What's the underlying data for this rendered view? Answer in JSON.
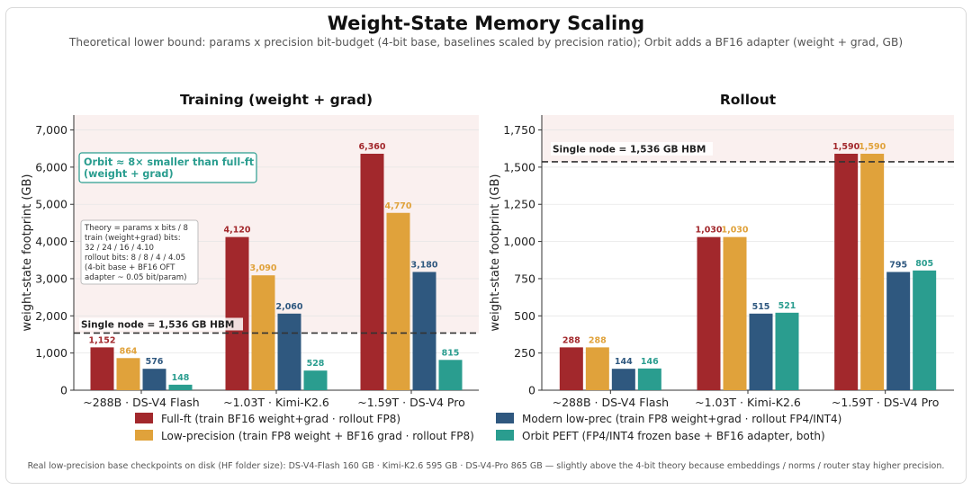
{
  "title": "Weight-State Memory Scaling",
  "subtitle": "Theoretical lower bound: params x precision bit-budget (4-bit base, baselines scaled by precision ratio); Orbit adds a BF16 adapter  (weight + grad, GB)",
  "footer": "Real low-precision base checkpoints on disk (HF folder size):  DS-V4-Flash 160 GB  ·  Kimi-K2.6 595 GB  ·  DS-V4-Pro 865 GB  — slightly above the 4-bit theory because embeddings / norms / router stay higher precision.",
  "colors": {
    "full_ft": "#a2282c",
    "low_precision": "#e0a23b",
    "modern_low_prec": "#2f587f",
    "orbit_peft": "#2a9d8f",
    "band": "#faf0ef",
    "note_green": "#2a9d8f"
  },
  "legend": [
    {
      "key": "full_ft",
      "label": "Full-ft  (train BF16 weight+grad · rollout FP8)"
    },
    {
      "key": "low_precision",
      "label": "Low-precision  (train FP8 weight + BF16 grad · rollout FP8)"
    },
    {
      "key": "modern_low_prec",
      "label": "Modern low-prec  (train FP8 weight+grad · rollout FP4/INT4)"
    },
    {
      "key": "orbit_peft",
      "label": "Orbit PEFT  (FP4/INT4 frozen base + BF16 adapter, both)"
    }
  ],
  "chart_data": [
    {
      "type": "bar",
      "title": "Training  (weight + grad)",
      "ylabel": "weight-state footprint (GB)",
      "categories": [
        "~288B  ·  DS-V4 Flash",
        "~1.03T  ·  Kimi-K2.6",
        "~1.59T  ·  DS-V4 Pro"
      ],
      "ylim": [
        0,
        7400
      ],
      "yticks": [
        0,
        1000,
        2000,
        3000,
        4000,
        5000,
        6000,
        7000
      ],
      "ytick_labels": [
        "0",
        "1,000",
        "2,000",
        "3,000",
        "4,000",
        "5,000",
        "6,000",
        "7,000"
      ],
      "series": [
        {
          "key": "full_ft",
          "name": "Full-ft",
          "values": [
            1152,
            4120,
            6360
          ],
          "labels": [
            "1,152",
            "4,120",
            "6,360"
          ]
        },
        {
          "key": "low_precision",
          "name": "Low-precision",
          "values": [
            864,
            3090,
            4770
          ],
          "labels": [
            "864",
            "3,090",
            "4,770"
          ]
        },
        {
          "key": "modern_low_prec",
          "name": "Modern low-prec",
          "values": [
            576,
            2060,
            3180
          ],
          "labels": [
            "576",
            "2,060",
            "3,180"
          ]
        },
        {
          "key": "orbit_peft",
          "name": "Orbit PEFT",
          "values": [
            148,
            528,
            815
          ],
          "labels": [
            "148",
            "528",
            "815"
          ]
        }
      ],
      "hline": {
        "value": 1536,
        "label": "Single node = 1,536 GB HBM"
      },
      "annotations": {
        "orbit_note": [
          "Orbit ≈ 8× smaller than full-ft",
          "(weight + grad)"
        ],
        "theory_note": [
          "Theory = params x bits / 8",
          "train (weight+grad) bits:",
          "  32 / 24 / 16 / 4.10",
          "rollout bits:  8 / 8 / 4 / 4.05",
          "(4-bit base + BF16 OFT",
          "  adapter ~ 0.05 bit/param)"
        ]
      },
      "grid": true
    },
    {
      "type": "bar",
      "title": "Rollout",
      "ylabel": "weight-state footprint (GB)",
      "categories": [
        "~288B  ·  DS-V4 Flash",
        "~1.03T  ·  Kimi-K2.6",
        "~1.59T  ·  DS-V4 Pro"
      ],
      "ylim": [
        0,
        1850
      ],
      "yticks": [
        0,
        250,
        500,
        750,
        1000,
        1250,
        1500,
        1750
      ],
      "ytick_labels": [
        "0",
        "250",
        "500",
        "750",
        "1,000",
        "1,250",
        "1,500",
        "1,750"
      ],
      "series": [
        {
          "key": "full_ft",
          "name": "Full-ft",
          "values": [
            288,
            1030,
            1590
          ],
          "labels": [
            "288",
            "1,030",
            "1,590"
          ]
        },
        {
          "key": "low_precision",
          "name": "Low-precision",
          "values": [
            288,
            1030,
            1590
          ],
          "labels": [
            "288",
            "1,030",
            "1,590"
          ]
        },
        {
          "key": "modern_low_prec",
          "name": "Modern low-prec",
          "values": [
            144,
            515,
            795
          ],
          "labels": [
            "144",
            "515",
            "795"
          ]
        },
        {
          "key": "orbit_peft",
          "name": "Orbit PEFT",
          "values": [
            146,
            521,
            805
          ],
          "labels": [
            "146",
            "521",
            "805"
          ]
        }
      ],
      "hline": {
        "value": 1536,
        "label": "Single node = 1,536 GB HBM"
      },
      "grid": true
    }
  ]
}
